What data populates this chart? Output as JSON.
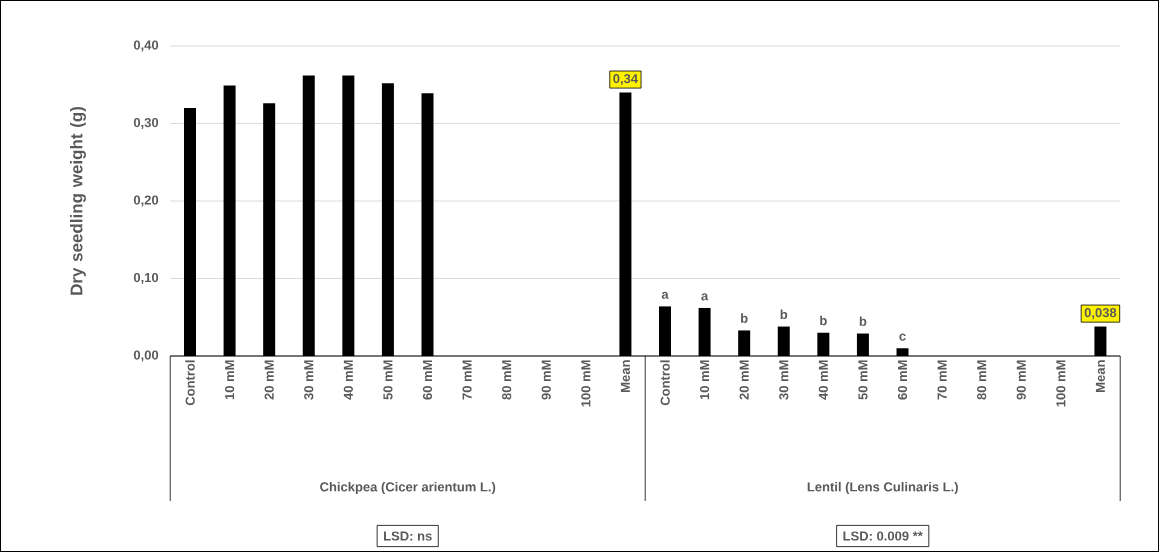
{
  "chart_data": {
    "type": "bar",
    "ylabel": "Dry seedling weight (g)",
    "categories": [
      "Control",
      "10 mM",
      "20 mM",
      "30 mM",
      "40 mM",
      "50 mM",
      "60 mM",
      "70 mM",
      "80 mM",
      "90 mM",
      "100 mM",
      "Mean",
      "Control",
      "10 mM",
      "20 mM",
      "30 mM",
      "40 mM",
      "50 mM",
      "60 mM",
      "70 mM",
      "80 mM",
      "90 mM",
      "100 mM",
      "Mean"
    ],
    "values": [
      0.32,
      0.349,
      0.326,
      0.362,
      0.362,
      0.352,
      0.339,
      null,
      null,
      null,
      null,
      0.34,
      0.064,
      0.062,
      0.033,
      0.038,
      0.03,
      0.029,
      0.01,
      null,
      null,
      null,
      null,
      0.038
    ],
    "value_labels": [
      null,
      null,
      null,
      null,
      null,
      null,
      null,
      null,
      null,
      null,
      null,
      "0,34",
      "a",
      "a",
      "b",
      "b",
      "b",
      "b",
      "c",
      null,
      null,
      null,
      null,
      "0,038"
    ],
    "color": "#000000",
    "ylim": [
      0,
      0.4
    ],
    "yticks": [
      {
        "value": 0,
        "label": "0,00"
      },
      {
        "value": 0.1,
        "label": "0,10"
      },
      {
        "value": 0.2,
        "label": "0,20"
      },
      {
        "value": 0.3,
        "label": "0,30"
      },
      {
        "value": 0.4,
        "label": "0,40"
      }
    ],
    "grid": "y",
    "annotations": [
      "Chickpea (Cicer arientum L.)",
      "Lentil (Lens Culinaris L.)",
      "LSD: ns",
      "LSD: 0.009 **"
    ]
  }
}
